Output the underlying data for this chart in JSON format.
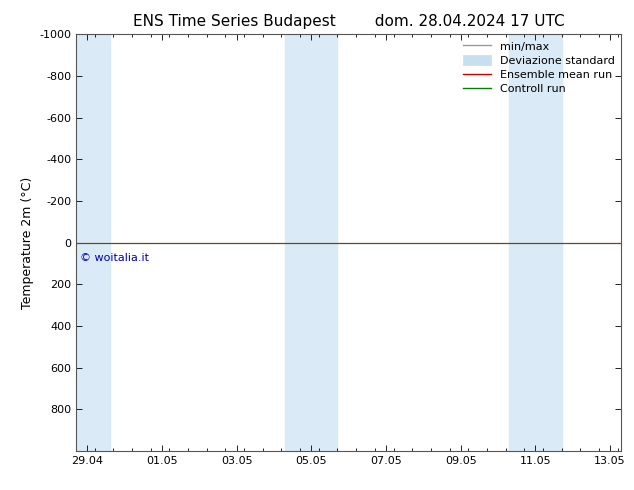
{
  "title_left": "ENS Time Series Budapest",
  "title_right": "dom. 28.04.2024 17 UTC",
  "ylabel": "Temperature 2m (°C)",
  "ylim": [
    -1000,
    1000
  ],
  "ytick_values": [
    -1000,
    -800,
    -600,
    -400,
    -200,
    0,
    200,
    400,
    600,
    800
  ],
  "xtick_labels": [
    "29.04",
    "01.05",
    "03.05",
    "05.05",
    "07.05",
    "09.05",
    "11.05",
    "13.05"
  ],
  "xtick_positions": [
    0,
    2,
    4,
    6,
    8,
    10,
    12,
    14
  ],
  "xlim": [
    -0.3,
    14.3
  ],
  "background_color": "#ffffff",
  "shaded_regions": [
    {
      "x_start": -0.3,
      "x_end": 0.6,
      "color": "#daeaf7"
    },
    {
      "x_start": 5.3,
      "x_end": 6.0,
      "color": "#daeaf7"
    },
    {
      "x_start": 6.0,
      "x_end": 6.7,
      "color": "#daeaf7"
    },
    {
      "x_start": 11.3,
      "x_end": 12.0,
      "color": "#daeaf7"
    },
    {
      "x_start": 12.0,
      "x_end": 12.7,
      "color": "#daeaf7"
    }
  ],
  "ensemble_mean_color": "#cc0000",
  "control_run_color": "#008000",
  "watermark": "© woitalia.it",
  "watermark_color": "#0000bb",
  "legend_minmax_color": "#999999",
  "legend_devstd_color": "#c8dff0",
  "font_size_title": 11,
  "font_size_axis_label": 9,
  "font_size_ticks": 8,
  "font_size_legend": 8,
  "font_size_watermark": 8
}
